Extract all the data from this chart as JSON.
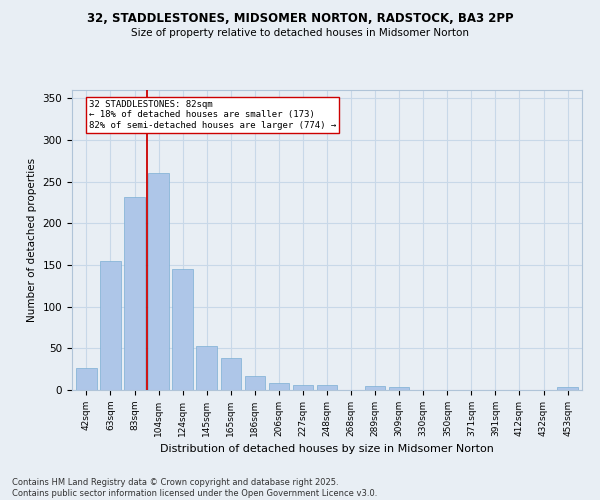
{
  "title1": "32, STADDLESTONES, MIDSOMER NORTON, RADSTOCK, BA3 2PP",
  "title2": "Size of property relative to detached houses in Midsomer Norton",
  "xlabel": "Distribution of detached houses by size in Midsomer Norton",
  "ylabel": "Number of detached properties",
  "categories": [
    "42sqm",
    "63sqm",
    "83sqm",
    "104sqm",
    "124sqm",
    "145sqm",
    "165sqm",
    "186sqm",
    "206sqm",
    "227sqm",
    "248sqm",
    "268sqm",
    "289sqm",
    "309sqm",
    "330sqm",
    "350sqm",
    "371sqm",
    "391sqm",
    "412sqm",
    "432sqm",
    "453sqm"
  ],
  "values": [
    27,
    155,
    232,
    260,
    145,
    53,
    39,
    17,
    9,
    6,
    6,
    0,
    5,
    4,
    0,
    0,
    0,
    0,
    0,
    0,
    4
  ],
  "bar_color": "#aec6e8",
  "bar_edge_color": "#7bafd4",
  "vline_x_index": 2.5,
  "vline_color": "#cc0000",
  "annotation_text": "32 STADDLESTONES: 82sqm\n← 18% of detached houses are smaller (173)\n82% of semi-detached houses are larger (774) →",
  "annotation_box_color": "#ffffff",
  "annotation_box_edge_color": "#cc0000",
  "ylim": [
    0,
    360
  ],
  "yticks": [
    0,
    50,
    100,
    150,
    200,
    250,
    300,
    350
  ],
  "grid_color": "#c8d8e8",
  "footnote": "Contains HM Land Registry data © Crown copyright and database right 2025.\nContains public sector information licensed under the Open Government Licence v3.0.",
  "bg_color": "#e8eef4"
}
